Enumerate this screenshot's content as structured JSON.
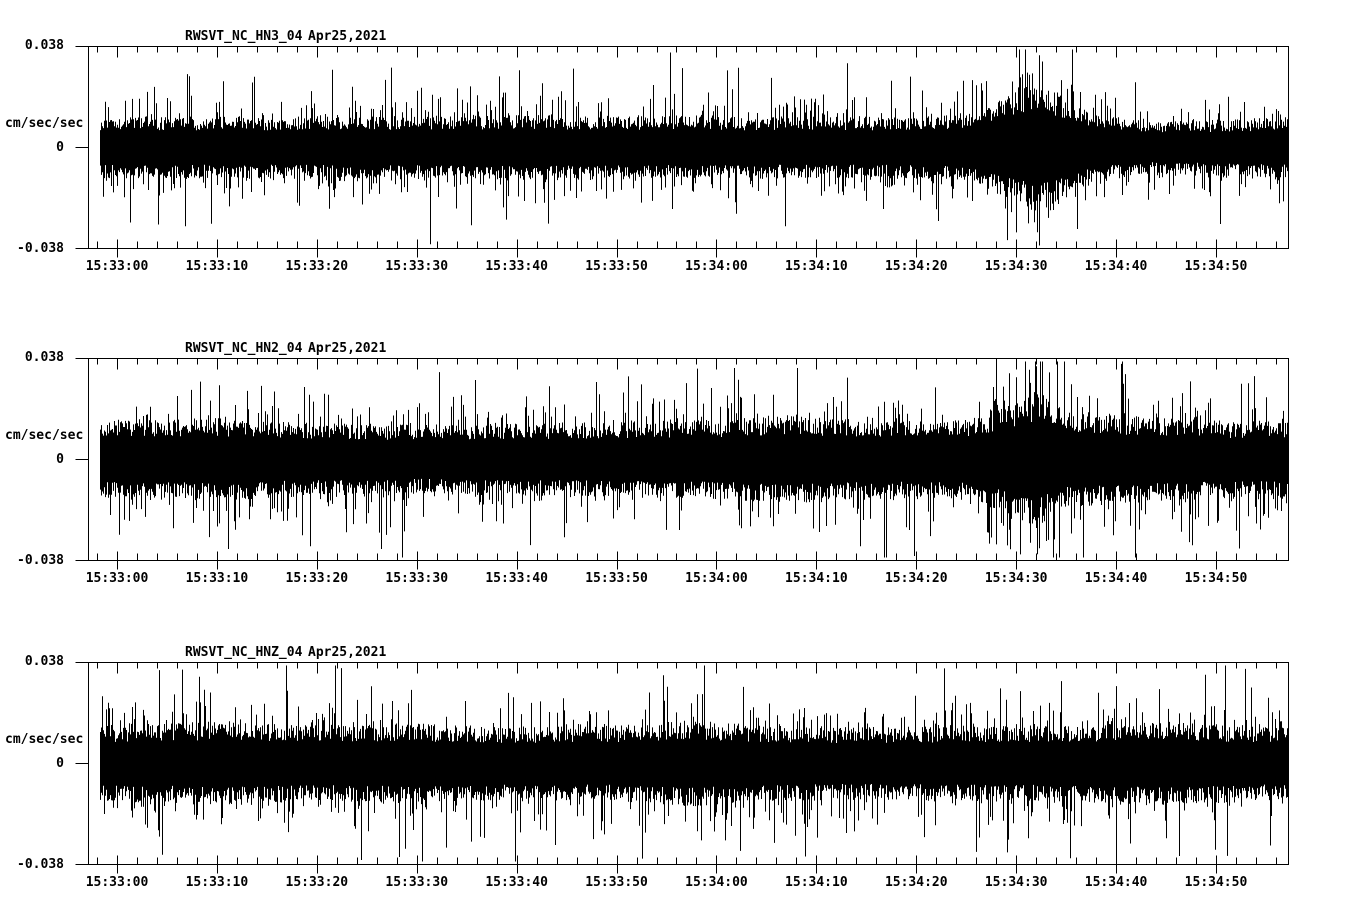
{
  "page": {
    "background": "#ffffff",
    "foreground": "#000000"
  },
  "chart_data": [
    {
      "type": "line",
      "subtype": "seismogram-waveform",
      "title": "RWSVT_NC_HN3_04",
      "date_label": "Apr25,2021",
      "ylabel": "cm/sec/sec",
      "ylim": [
        -0.038,
        0.038
      ],
      "yticks": [
        0.038,
        0,
        -0.038
      ],
      "ytick_labels": [
        "0.038",
        "0",
        "-0.038"
      ],
      "xtick_labels": [
        "15:33:00",
        "15:33:10",
        "15:33:20",
        "15:33:30",
        "15:33:40",
        "15:33:50",
        "15:34:00",
        "15:34:10",
        "15:34:20",
        "15:34:30",
        "15:34:40",
        "15:34:50"
      ],
      "xtick_times_seconds": [
        0,
        10,
        20,
        30,
        40,
        50,
        60,
        70,
        80,
        90,
        100,
        110
      ],
      "x_axis_range_seconds": [
        -2.9,
        117.2
      ],
      "trace_range_seconds": [
        -1.7,
        117.1
      ],
      "minor_tick_step_seconds": 2,
      "grid": false,
      "legend": "none",
      "line_color": "#000000",
      "noise_model": {
        "description": "continuous ground-acceleration noise, dense core about ±0.007 with spikes to ±0.025; burst near 15:34:30 reaching ±0.037",
        "seed": 7,
        "base_amplitude": 0.013,
        "amplitude_envelope": [
          [
            -2,
            1.0
          ],
          [
            20,
            1.0
          ],
          [
            40,
            1.05
          ],
          [
            60,
            1.0
          ],
          [
            80,
            1.0
          ],
          [
            86,
            1.1
          ],
          [
            89,
            1.7
          ],
          [
            92,
            2.1
          ],
          [
            95,
            1.6
          ],
          [
            98,
            1.1
          ],
          [
            103,
            0.85
          ],
          [
            110,
            0.9
          ],
          [
            117.5,
            1.0
          ]
        ]
      }
    },
    {
      "type": "line",
      "subtype": "seismogram-waveform",
      "title": "RWSVT_NC_HN2_04",
      "date_label": "Apr25,2021",
      "ylabel": "cm/sec/sec",
      "ylim": [
        -0.038,
        0.038
      ],
      "yticks": [
        0.038,
        0,
        -0.038
      ],
      "ytick_labels": [
        "0.038",
        "0",
        "-0.038"
      ],
      "xtick_labels": [
        "15:33:00",
        "15:33:10",
        "15:33:20",
        "15:33:30",
        "15:33:40",
        "15:33:50",
        "15:34:00",
        "15:34:10",
        "15:34:20",
        "15:34:30",
        "15:34:40",
        "15:34:50"
      ],
      "xtick_times_seconds": [
        0,
        10,
        20,
        30,
        40,
        50,
        60,
        70,
        80,
        90,
        100,
        110
      ],
      "x_axis_range_seconds": [
        -2.9,
        117.2
      ],
      "trace_range_seconds": [
        -1.7,
        117.1
      ],
      "minor_tick_step_seconds": 2,
      "grid": false,
      "legend": "none",
      "line_color": "#000000",
      "noise_model": {
        "description": "continuous ground-acceleration noise, slightly larger band about ±0.012 with spikes to ±0.028; strongest burst near 15:34:30 reaching ±0.037",
        "seed": 21,
        "base_amplitude": 0.0145,
        "amplitude_envelope": [
          [
            -2,
            1.15
          ],
          [
            10,
            1.2
          ],
          [
            20,
            1.05
          ],
          [
            30,
            1.0
          ],
          [
            40,
            1.05
          ],
          [
            50,
            1.1
          ],
          [
            60,
            1.15
          ],
          [
            68,
            1.3
          ],
          [
            75,
            1.1
          ],
          [
            85,
            1.15
          ],
          [
            89,
            1.6
          ],
          [
            92,
            2.0
          ],
          [
            95,
            1.4
          ],
          [
            100,
            1.3
          ],
          [
            105,
            1.2
          ],
          [
            112,
            1.1
          ],
          [
            117.5,
            1.15
          ]
        ]
      }
    },
    {
      "type": "line",
      "subtype": "seismogram-waveform",
      "title": "RWSVT_NC_HNZ_04",
      "date_label": "Apr25,2021",
      "ylabel": "cm/sec/sec",
      "ylim": [
        -0.038,
        0.038
      ],
      "yticks": [
        0.038,
        0,
        -0.038
      ],
      "ytick_labels": [
        "0.038",
        "0",
        "-0.038"
      ],
      "xtick_labels": [
        "15:33:00",
        "15:33:10",
        "15:33:20",
        "15:33:30",
        "15:33:40",
        "15:33:50",
        "15:34:00",
        "15:34:10",
        "15:34:20",
        "15:34:30",
        "15:34:40",
        "15:34:50"
      ],
      "xtick_times_seconds": [
        0,
        10,
        20,
        30,
        40,
        50,
        60,
        70,
        80,
        90,
        100,
        110
      ],
      "x_axis_range_seconds": [
        -2.9,
        117.2
      ],
      "trace_range_seconds": [
        -1.7,
        117.1
      ],
      "minor_tick_step_seconds": 2,
      "grid": false,
      "legend": "none",
      "line_color": "#000000",
      "noise_model": {
        "description": "continuous ground-acceleration noise, fairly uniform band about ±0.012 with scattered spikes to ±0.03; no dominant burst",
        "seed": 42,
        "base_amplitude": 0.0145,
        "amplitude_envelope": [
          [
            -2,
            1.1
          ],
          [
            10,
            1.2
          ],
          [
            20,
            1.1
          ],
          [
            30,
            1.15
          ],
          [
            40,
            1.05
          ],
          [
            50,
            1.1
          ],
          [
            57,
            1.25
          ],
          [
            65,
            1.1
          ],
          [
            75,
            1.05
          ],
          [
            85,
            1.1
          ],
          [
            95,
            1.1
          ],
          [
            103,
            1.2
          ],
          [
            110,
            1.15
          ],
          [
            117.5,
            1.05
          ]
        ]
      }
    }
  ]
}
